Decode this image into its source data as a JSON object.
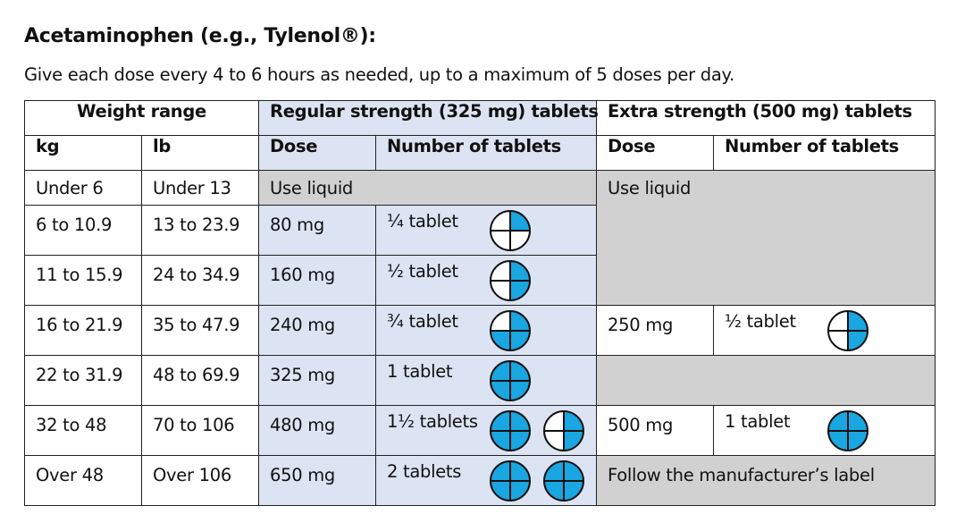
{
  "heading": "Acetaminophen (e.g., Tylenol®):",
  "subheading": "Give each dose every 4 to 6 hours as needed, up to a maximum of 5 doses per day.",
  "colors": {
    "regular_bg": "#dce4f3",
    "grey_bg": "#d1d1d1",
    "tablet_fill": "#1aa6e0"
  },
  "table": {
    "group_headers": {
      "weight": "Weight range",
      "regular": "Regular strength (325 mg) tablets",
      "extra": "Extra strength (500 mg) tablets"
    },
    "sub_headers": {
      "kg": "kg",
      "lb": "lb",
      "reg_dose": "Dose",
      "reg_tablets": "Number of tablets",
      "ext_dose": "Dose",
      "ext_tablets": "Number of tablets"
    },
    "rows": [
      {
        "kg": "Under 6",
        "lb": "Under 13",
        "reg_use_liquid": "Use liquid",
        "ext_use_liquid": "Use liquid"
      },
      {
        "kg": "6 to 10.9",
        "lb": "13 to 23.9",
        "reg_dose": "80 mg",
        "reg_tablets": "¼ tablet",
        "reg_icons": [
          0.25
        ]
      },
      {
        "kg": "11 to 15.9",
        "lb": "24 to 34.9",
        "reg_dose": "160 mg",
        "reg_tablets": "½ tablet",
        "reg_icons": [
          0.5
        ]
      },
      {
        "kg": "16 to 21.9",
        "lb": "35 to 47.9",
        "reg_dose": "240 mg",
        "reg_tablets": "¾ tablet",
        "reg_icons": [
          0.75
        ],
        "ext_dose": "250 mg",
        "ext_tablets": "½ tablet",
        "ext_icons": [
          0.5
        ]
      },
      {
        "kg": "22 to 31.9",
        "lb": "48 to 69.9",
        "reg_dose": "325 mg",
        "reg_tablets": "1 tablet",
        "reg_icons": [
          1
        ]
      },
      {
        "kg": "32 to 48",
        "lb": "70 to 106",
        "reg_dose": "480 mg",
        "reg_tablets": "1½ tablets",
        "reg_icons": [
          1,
          0.5
        ],
        "ext_dose": "500 mg",
        "ext_tablets": "1 tablet",
        "ext_icons": [
          1
        ]
      },
      {
        "kg": "Over 48",
        "lb": "Over 106",
        "reg_dose": "650 mg",
        "reg_tablets": "2 tablets",
        "reg_icons": [
          1,
          1
        ],
        "ext_note": "Follow the manufacturer’s label"
      }
    ]
  }
}
